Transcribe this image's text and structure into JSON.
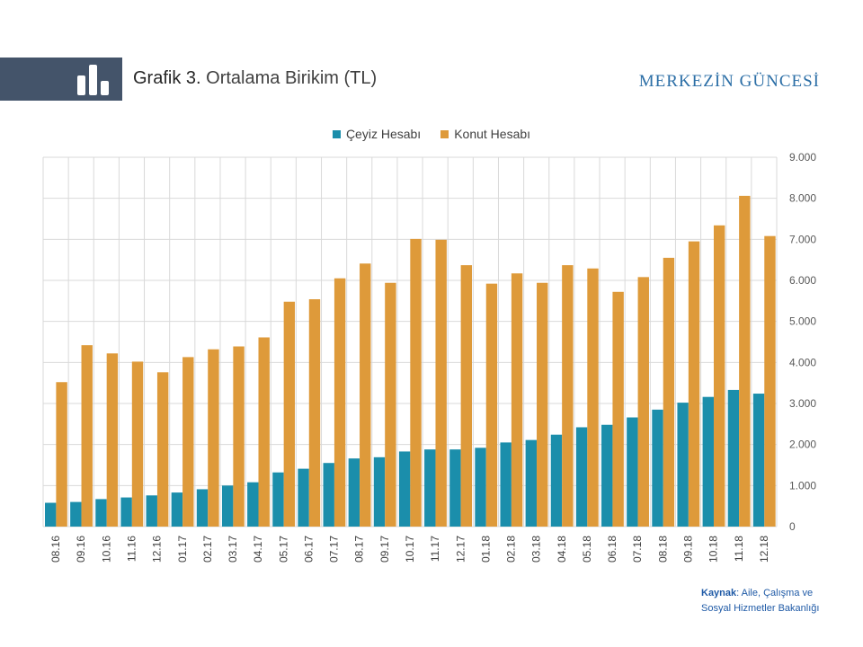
{
  "header": {
    "title_prefix": "Grafik 3.",
    "title_text": "Ortalama Birikim (TL)",
    "brand": "MERKEZİN GÜNCESİ",
    "icon": "bar-chart-icon"
  },
  "colors": {
    "header_band": "#44546a",
    "ceyiz": "#1b8eab",
    "konut": "#de9a3a",
    "brand": "#2b6ea6"
  },
  "source": {
    "label": "Kaynak",
    "line1": ": Aile, Çalışma ve",
    "line2": "Sosyal Hizmetler Bakanlığı"
  },
  "chart_data": {
    "type": "bar",
    "title": "",
    "xlabel": "",
    "ylabel": "",
    "ylim": [
      0,
      9000
    ],
    "yticks": [
      0,
      1000,
      2000,
      3000,
      4000,
      5000,
      6000,
      7000,
      8000,
      9000
    ],
    "ytick_labels": [
      "0",
      "1.000",
      "2.000",
      "3.000",
      "4.000",
      "5.000",
      "6.000",
      "7.000",
      "8.000",
      "9.000"
    ],
    "y_axis_position": "right",
    "grid": true,
    "legend_position": "top",
    "categories": [
      "08.16",
      "09.16",
      "10.16",
      "11.16",
      "12.16",
      "01.17",
      "02.17",
      "03.17",
      "04.17",
      "05.17",
      "06.17",
      "07.17",
      "08.17",
      "09.17",
      "10.17",
      "11.17",
      "12.17",
      "01.18",
      "02.18",
      "03.18",
      "04.18",
      "05.18",
      "06.18",
      "07.18",
      "08.18",
      "09.18",
      "10.18",
      "11.18",
      "12.18"
    ],
    "series": [
      {
        "name": "Çeyiz Hesabı",
        "color": "#1b8eab",
        "values": [
          580,
          600,
          670,
          710,
          760,
          830,
          910,
          1000,
          1080,
          1320,
          1410,
          1550,
          1660,
          1690,
          1830,
          1880,
          1880,
          1920,
          2050,
          2110,
          2240,
          2420,
          2480,
          2660,
          2850,
          3020,
          3160,
          3330,
          3240
        ]
      },
      {
        "name": "Konut Hesabı",
        "color": "#de9a3a",
        "values": [
          3520,
          4420,
          4220,
          4020,
          3760,
          4130,
          4320,
          4390,
          4610,
          5480,
          5540,
          6050,
          6410,
          5940,
          7010,
          6990,
          6370,
          5920,
          6170,
          5940,
          6370,
          6290,
          5720,
          6080,
          6550,
          6950,
          7340,
          8060,
          7080
        ]
      }
    ]
  }
}
